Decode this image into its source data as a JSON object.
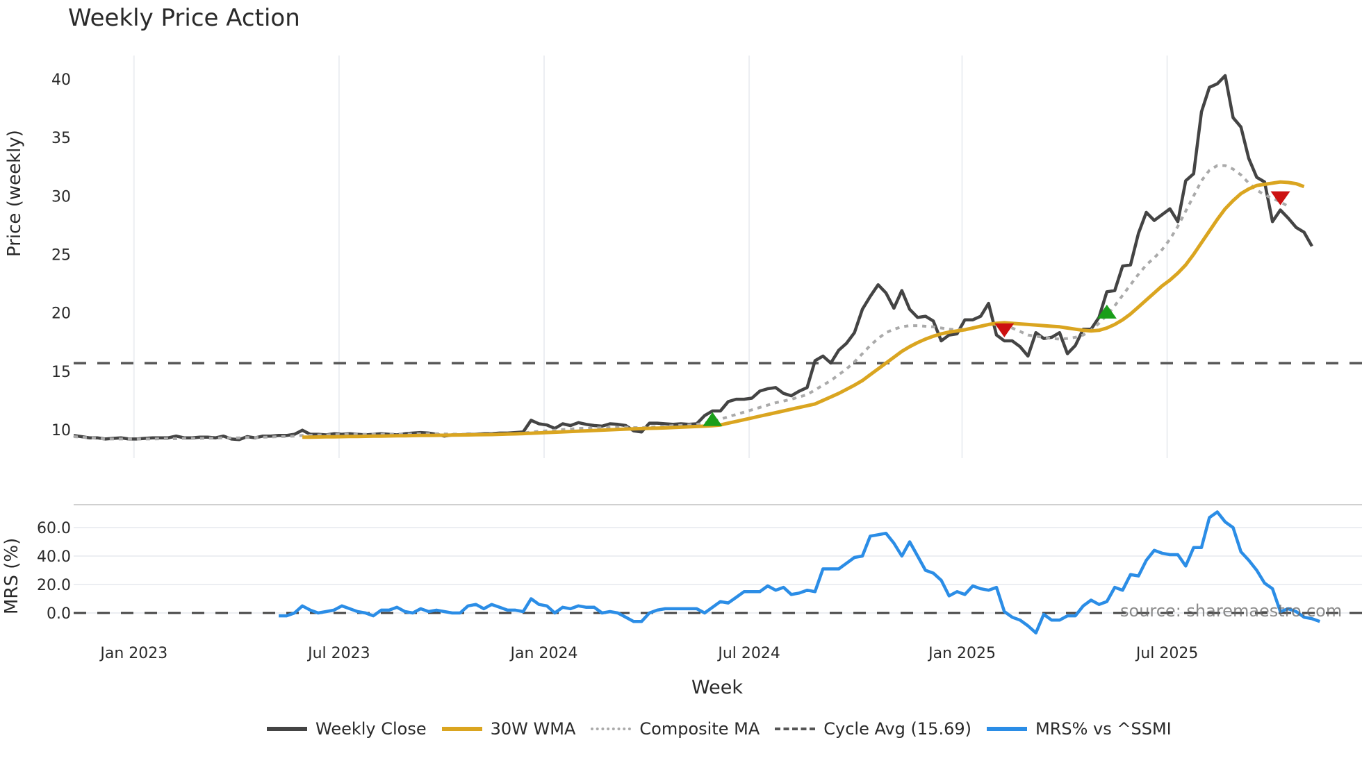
{
  "title": "Weekly Price Action",
  "axes": {
    "price_ylabel": "Price (weekly)",
    "mrs_ylabel": "MRS (%)",
    "xlabel": "Week",
    "price_yticks": [
      "10",
      "15",
      "20",
      "25",
      "30",
      "35",
      "40"
    ],
    "mrs_yticks": [
      "0.0",
      "20.0",
      "40.0",
      "60.0"
    ],
    "xticks": [
      "Jan 2023",
      "Jul 2023",
      "Jan 2024",
      "Jul 2024",
      "Jan 2025",
      "Jul 2025"
    ]
  },
  "legend": {
    "weekly_close": "Weekly Close",
    "wma": "30W WMA",
    "composite": "Composite MA",
    "cycle": "Cycle Avg (15.69)",
    "mrs": "MRS% vs ^SSMI"
  },
  "source": "source: sharemaestro.com",
  "colors": {
    "close": "#444444",
    "wma": "#DAA520",
    "composite": "#aaaaaa",
    "cycle": "#555555",
    "mrs": "#2b8de6",
    "buy": "#1a9e1a",
    "sell": "#cc1111",
    "grid": "#eceef2"
  },
  "chart_data": [
    {
      "type": "line",
      "title": "Weekly Price Action",
      "xlabel": "Week",
      "ylabel": "Price (weekly)",
      "ylim": [
        7.5,
        42
      ],
      "grid": true,
      "legend_position": "bottom",
      "x_ticks": [
        "Jan 2023",
        "Jul 2023",
        "Jan 2024",
        "Jul 2024",
        "Jan 2025",
        "Jul 2025"
      ],
      "x_tick_week_index": [
        8,
        34,
        60,
        86,
        113,
        139
      ],
      "series": [
        {
          "name": "Weekly Close",
          "start_index": 0,
          "values": [
            9.5,
            9.4,
            9.3,
            9.3,
            9.2,
            9.25,
            9.3,
            9.2,
            9.2,
            9.25,
            9.3,
            9.3,
            9.3,
            9.45,
            9.3,
            9.3,
            9.35,
            9.35,
            9.3,
            9.45,
            9.2,
            9.15,
            9.4,
            9.3,
            9.45,
            9.45,
            9.5,
            9.5,
            9.6,
            9.95,
            9.6,
            9.6,
            9.55,
            9.65,
            9.6,
            9.65,
            9.6,
            9.55,
            9.6,
            9.65,
            9.6,
            9.55,
            9.65,
            9.7,
            9.75,
            9.7,
            9.6,
            9.45,
            9.55,
            9.55,
            9.6,
            9.6,
            9.65,
            9.65,
            9.7,
            9.7,
            9.75,
            9.8,
            10.8,
            10.5,
            10.4,
            10.1,
            10.5,
            10.35,
            10.6,
            10.45,
            10.35,
            10.3,
            10.5,
            10.45,
            10.35,
            9.9,
            9.8,
            10.55,
            10.55,
            10.5,
            10.45,
            10.5,
            10.45,
            10.5,
            11.2,
            11.6,
            11.6,
            12.4,
            12.6,
            12.6,
            12.7,
            13.3,
            13.5,
            13.6,
            13.1,
            12.9,
            13.3,
            13.6,
            15.9,
            16.3,
            15.7,
            16.8,
            17.4,
            18.3,
            20.3,
            21.4,
            22.4,
            21.7,
            20.4,
            21.9,
            20.3,
            19.6,
            19.7,
            19.3,
            17.6,
            18.1,
            18.2,
            19.4,
            19.4,
            19.7,
            20.8,
            18.1,
            17.6,
            17.6,
            17.1,
            16.3,
            18.3,
            17.8,
            17.9,
            18.3,
            16.5,
            17.2,
            18.6,
            18.6,
            19.6,
            21.8,
            21.9,
            24.0,
            24.1,
            26.8,
            28.6,
            27.9,
            28.4,
            28.9,
            27.8,
            31.3,
            31.9,
            37.2,
            39.3,
            39.6,
            40.3,
            36.7,
            35.9,
            33.2,
            31.6,
            31.2,
            27.8,
            28.8,
            28.1,
            27.3,
            26.9,
            25.7
          ]
        },
        {
          "name": "30W WMA",
          "start_index": 29,
          "values": [
            9.35,
            9.36,
            9.37,
            9.38,
            9.39,
            9.4,
            9.41,
            9.42,
            9.43,
            9.44,
            9.45,
            9.46,
            9.47,
            9.48,
            9.49,
            9.5,
            9.5,
            9.51,
            9.52,
            9.53,
            9.54,
            9.55,
            9.56,
            9.57,
            9.58,
            9.6,
            9.62,
            9.64,
            9.66,
            9.69,
            9.72,
            9.75,
            9.78,
            9.81,
            9.84,
            9.87,
            9.9,
            9.93,
            9.96,
            9.99,
            10.02,
            10.05,
            10.07,
            10.09,
            10.11,
            10.13,
            10.15,
            10.18,
            10.21,
            10.24,
            10.27,
            10.3,
            10.33,
            10.4,
            10.55,
            10.7,
            10.85,
            11.0,
            11.15,
            11.3,
            11.45,
            11.6,
            11.75,
            11.9,
            12.05,
            12.2,
            12.5,
            12.8,
            13.1,
            13.45,
            13.8,
            14.2,
            14.7,
            15.2,
            15.7,
            16.2,
            16.7,
            17.1,
            17.45,
            17.75,
            18.0,
            18.2,
            18.35,
            18.45,
            18.55,
            18.7,
            18.85,
            19.0,
            19.1,
            19.15,
            19.1,
            19.05,
            19.0,
            18.95,
            18.9,
            18.85,
            18.8,
            18.7,
            18.6,
            18.5,
            18.45,
            18.5,
            18.7,
            19.0,
            19.4,
            19.9,
            20.5,
            21.1,
            21.7,
            22.3,
            22.8,
            23.4,
            24.1,
            25.0,
            26.0,
            27.0,
            28.0,
            28.9,
            29.6,
            30.2,
            30.6,
            30.9,
            31.0,
            31.1,
            31.2,
            31.15,
            31.05,
            30.8
          ]
        },
        {
          "name": "Composite MA",
          "start_index": 0,
          "values": [
            9.4,
            9.35,
            9.3,
            9.25,
            9.2,
            9.2,
            9.2,
            9.2,
            9.2,
            9.2,
            9.2,
            9.22,
            9.22,
            9.22,
            9.25,
            9.25,
            9.25,
            9.27,
            9.27,
            9.3,
            9.3,
            9.3,
            9.32,
            9.32,
            9.35,
            9.37,
            9.4,
            9.42,
            9.45,
            9.5,
            9.52,
            9.54,
            9.55,
            9.57,
            9.58,
            9.6,
            9.6,
            9.6,
            9.6,
            9.6,
            9.62,
            9.62,
            9.62,
            9.63,
            9.64,
            9.65,
            9.65,
            9.63,
            9.62,
            9.6,
            9.6,
            9.6,
            9.61,
            9.62,
            9.63,
            9.65,
            9.67,
            9.7,
            9.8,
            9.85,
            9.9,
            9.95,
            10.0,
            10.05,
            10.1,
            10.12,
            10.14,
            10.16,
            10.18,
            10.2,
            10.2,
            10.18,
            10.17,
            10.2,
            10.25,
            10.3,
            10.33,
            10.36,
            10.4,
            10.45,
            10.55,
            10.7,
            10.9,
            11.1,
            11.3,
            11.5,
            11.7,
            11.9,
            12.1,
            12.3,
            12.45,
            12.6,
            12.8,
            13.0,
            13.4,
            13.8,
            14.2,
            14.7,
            15.2,
            15.8,
            16.5,
            17.2,
            17.8,
            18.3,
            18.6,
            18.8,
            18.9,
            18.9,
            18.85,
            18.8,
            18.7,
            18.6,
            18.55,
            18.6,
            18.7,
            18.85,
            19.0,
            19.0,
            18.9,
            18.7,
            18.4,
            18.1,
            18.0,
            17.9,
            17.8,
            17.75,
            17.8,
            17.9,
            18.1,
            18.5,
            19.1,
            19.8,
            20.6,
            21.5,
            22.4,
            23.3,
            24.1,
            24.7,
            25.4,
            26.3,
            27.4,
            28.7,
            30.0,
            31.3,
            32.2,
            32.6,
            32.6,
            32.3,
            31.8,
            31.1,
            30.5,
            30.1,
            29.8,
            29.5,
            29.1
          ]
        },
        {
          "name": "Cycle Avg (15.69)",
          "type": "hline",
          "value": 15.69
        },
        {
          "name": "Buy signals",
          "type": "scatter",
          "marker": "triangle-up",
          "points": [
            [
              81,
              10.9
            ],
            [
              131,
              20.1
            ]
          ]
        },
        {
          "name": "Sell signals",
          "type": "scatter",
          "marker": "triangle-down",
          "points": [
            [
              118,
              18.5
            ],
            [
              153,
              29.8
            ]
          ]
        }
      ]
    },
    {
      "type": "line",
      "title": "",
      "xlabel": "Week",
      "ylabel": "MRS (%)",
      "ylim": [
        -18,
        76
      ],
      "grid": true,
      "series": [
        {
          "name": "MRS% vs ^SSMI",
          "start_index": 26,
          "values": [
            -2,
            -2,
            0,
            5,
            2,
            0,
            1,
            2,
            5,
            3,
            1,
            0,
            -2,
            2,
            2,
            4,
            1,
            0,
            3,
            1,
            2,
            1,
            0,
            0,
            5,
            6,
            3,
            6,
            4,
            2,
            2,
            1,
            10,
            6,
            5,
            0,
            4,
            3,
            5,
            4,
            4,
            0,
            1,
            0,
            -3,
            -6,
            -6,
            0,
            2,
            3,
            3,
            3,
            3,
            3,
            0,
            4,
            8,
            7,
            11,
            15,
            15,
            15,
            19,
            16,
            18,
            13,
            14,
            16,
            15,
            31,
            31,
            31,
            35,
            39,
            40,
            54,
            55,
            56,
            49,
            40,
            50,
            40,
            30,
            28,
            23,
            12,
            15,
            13,
            19,
            17,
            16,
            18,
            1,
            -3,
            -5,
            -9,
            -14,
            -1,
            -5,
            -5,
            -2,
            -2,
            5,
            9,
            6,
            8,
            18,
            16,
            27,
            26,
            37,
            44,
            42,
            41,
            41,
            33,
            46,
            46,
            67,
            71,
            64,
            60,
            43,
            37,
            30,
            21,
            17,
            1,
            3,
            1,
            -3,
            -4,
            -6
          ]
        },
        {
          "name": "Zero line",
          "type": "hline",
          "value": 0
        }
      ]
    }
  ]
}
